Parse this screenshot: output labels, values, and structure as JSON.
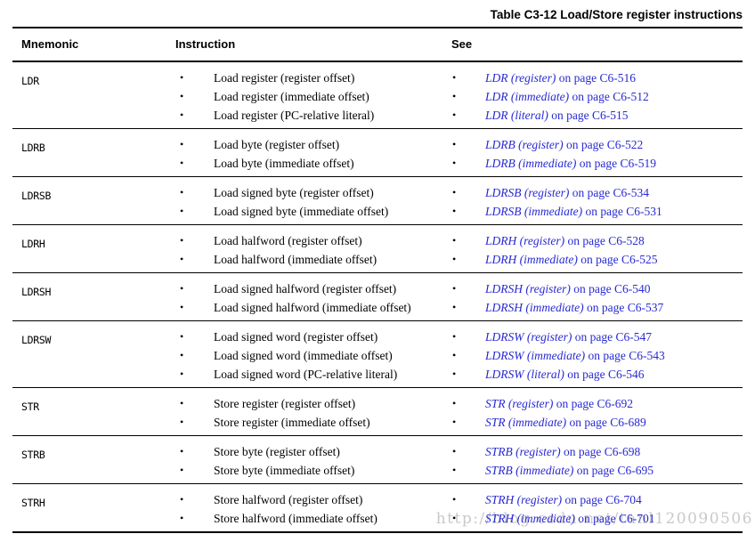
{
  "title": "Table C3-12 Load/Store register instructions",
  "watermark": "http://blog.csdn.net/tanl120090506",
  "glyphs": {
    "bullet": "•"
  },
  "colors": {
    "link_blue": "#2829d2",
    "rule_black": "#000000",
    "watermark_gray": "#c9c9c9"
  },
  "table": {
    "columns": [
      "Mnemonic",
      "Instruction",
      "See"
    ],
    "rows": [
      {
        "mnemonic": "LDR",
        "instructions": [
          "Load register (register offset)",
          "Load register (immediate offset)",
          "Load register (PC-relative literal)"
        ],
        "see": [
          {
            "link": "LDR (register)",
            "suffix": " on page C6-516"
          },
          {
            "link": "LDR (immediate)",
            "suffix": " on page C6-512"
          },
          {
            "link": "LDR (literal)",
            "suffix": " on page C6-515"
          }
        ]
      },
      {
        "mnemonic": "LDRB",
        "instructions": [
          "Load byte (register offset)",
          "Load byte (immediate offset)"
        ],
        "see": [
          {
            "link": "LDRB (register)",
            "suffix": " on page C6-522"
          },
          {
            "link": "LDRB (immediate)",
            "suffix": " on page C6-519"
          }
        ]
      },
      {
        "mnemonic": "LDRSB",
        "instructions": [
          "Load signed byte (register offset)",
          "Load signed byte (immediate offset)"
        ],
        "see": [
          {
            "link": "LDRSB (register)",
            "suffix": " on page C6-534"
          },
          {
            "link": "LDRSB (immediate)",
            "suffix": " on page C6-531"
          }
        ]
      },
      {
        "mnemonic": "LDRH",
        "instructions": [
          "Load halfword (register offset)",
          "Load halfword (immediate offset)"
        ],
        "see": [
          {
            "link": "LDRH (register)",
            "suffix": " on page C6-528"
          },
          {
            "link": "LDRH (immediate)",
            "suffix": " on page C6-525"
          }
        ]
      },
      {
        "mnemonic": "LDRSH",
        "instructions": [
          "Load signed halfword (register offset)",
          "Load signed halfword (immediate offset)"
        ],
        "see": [
          {
            "link": "LDRSH (register)",
            "suffix": " on page C6-540"
          },
          {
            "link": "LDRSH (immediate)",
            "suffix": " on page C6-537"
          }
        ]
      },
      {
        "mnemonic": "LDRSW",
        "instructions": [
          "Load signed word (register offset)",
          "Load signed word (immediate offset)",
          "Load signed word (PC-relative literal)"
        ],
        "see": [
          {
            "link": "LDRSW (register)",
            "suffix": " on page C6-547"
          },
          {
            "link": "LDRSW (immediate)",
            "suffix": " on page C6-543"
          },
          {
            "link": "LDRSW (literal)",
            "suffix": " on page C6-546"
          }
        ]
      },
      {
        "mnemonic": "STR",
        "instructions": [
          "Store register (register offset)",
          "Store register (immediate offset)"
        ],
        "see": [
          {
            "link": "STR (register)",
            "suffix": " on page C6-692"
          },
          {
            "link": "STR (immediate)",
            "suffix": " on page C6-689"
          }
        ]
      },
      {
        "mnemonic": "STRB",
        "instructions": [
          "Store byte (register offset)",
          "Store byte (immediate offset)"
        ],
        "see": [
          {
            "link": "STRB (register)",
            "suffix": " on page C6-698"
          },
          {
            "link": "STRB (immediate)",
            "suffix": " on page C6-695"
          }
        ]
      },
      {
        "mnemonic": "STRH",
        "instructions": [
          "Store halfword (register offset)",
          "Store halfword (immediate offset)"
        ],
        "see": [
          {
            "link": "STRH (register)",
            "suffix": " on page C6-704"
          },
          {
            "link": "STRH (immediate)",
            "suffix": " on page C6-701"
          }
        ]
      }
    ]
  }
}
